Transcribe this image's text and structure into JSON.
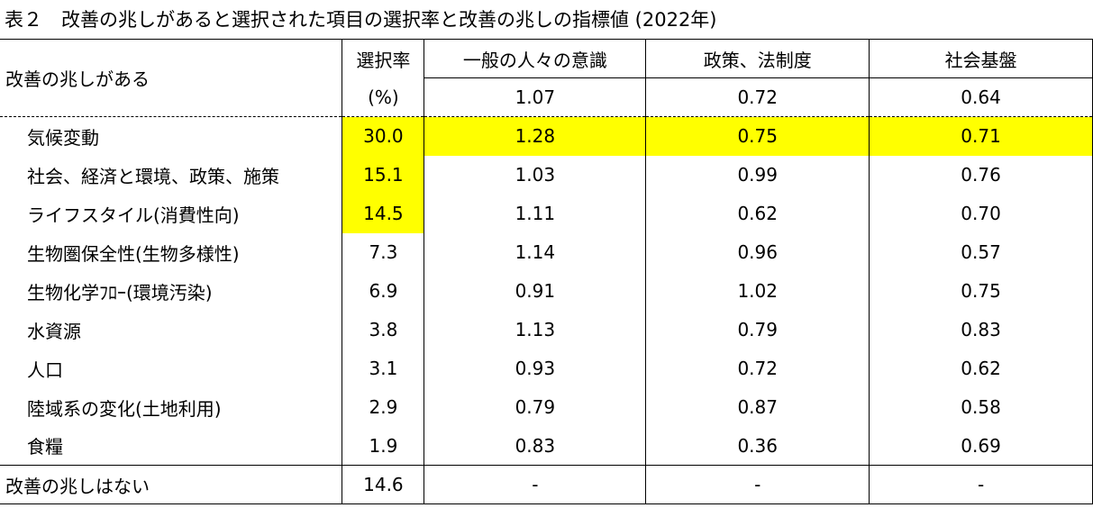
{
  "caption": "表２　改善の兆しがあると選択された項目の選択率と改善の兆しの指標値 (2022年)",
  "header": {
    "row_label": "改善の兆しがある",
    "rate_label": "選択率",
    "rate_unit": "(%)",
    "col1": "一般の人々の意識",
    "col2": "政策、法制度",
    "col3": "社会基盤"
  },
  "overall": {
    "v1": "1.07",
    "v2": "0.72",
    "v3": "0.64"
  },
  "rows": [
    {
      "label": "気候変動",
      "rate": "30.0",
      "v1": "1.28",
      "v2": "0.75",
      "v3": "0.71"
    },
    {
      "label": "社会、経済と環境、政策、施策",
      "rate": "15.1",
      "v1": "1.03",
      "v2": "0.99",
      "v3": "0.76"
    },
    {
      "label": "ライフスタイル(消費性向)",
      "rate": "14.5",
      "v1": "1.11",
      "v2": "0.62",
      "v3": "0.70"
    },
    {
      "label": "生物圏保全性(生物多様性)",
      "rate": "7.3",
      "v1": "1.14",
      "v2": "0.96",
      "v3": "0.57"
    },
    {
      "label": "生物化学ﾌﾛｰ(環境汚染)",
      "rate": "6.9",
      "v1": "0.91",
      "v2": "1.02",
      "v3": "0.75"
    },
    {
      "label": "水資源",
      "rate": "3.8",
      "v1": "1.13",
      "v2": "0.79",
      "v3": "0.83"
    },
    {
      "label": "人口",
      "rate": "3.1",
      "v1": "0.93",
      "v2": "0.72",
      "v3": "0.62"
    },
    {
      "label": "陸域系の変化(土地利用)",
      "rate": "2.9",
      "v1": "0.79",
      "v2": "0.87",
      "v3": "0.58"
    },
    {
      "label": "食糧",
      "rate": "1.9",
      "v1": "0.83",
      "v2": "0.36",
      "v3": "0.69"
    }
  ],
  "no_sign": {
    "label": "改善の兆しはない",
    "rate": "14.6",
    "v1": "-",
    "v2": "-",
    "v3": "-"
  },
  "highlight_color": "#ffff00"
}
